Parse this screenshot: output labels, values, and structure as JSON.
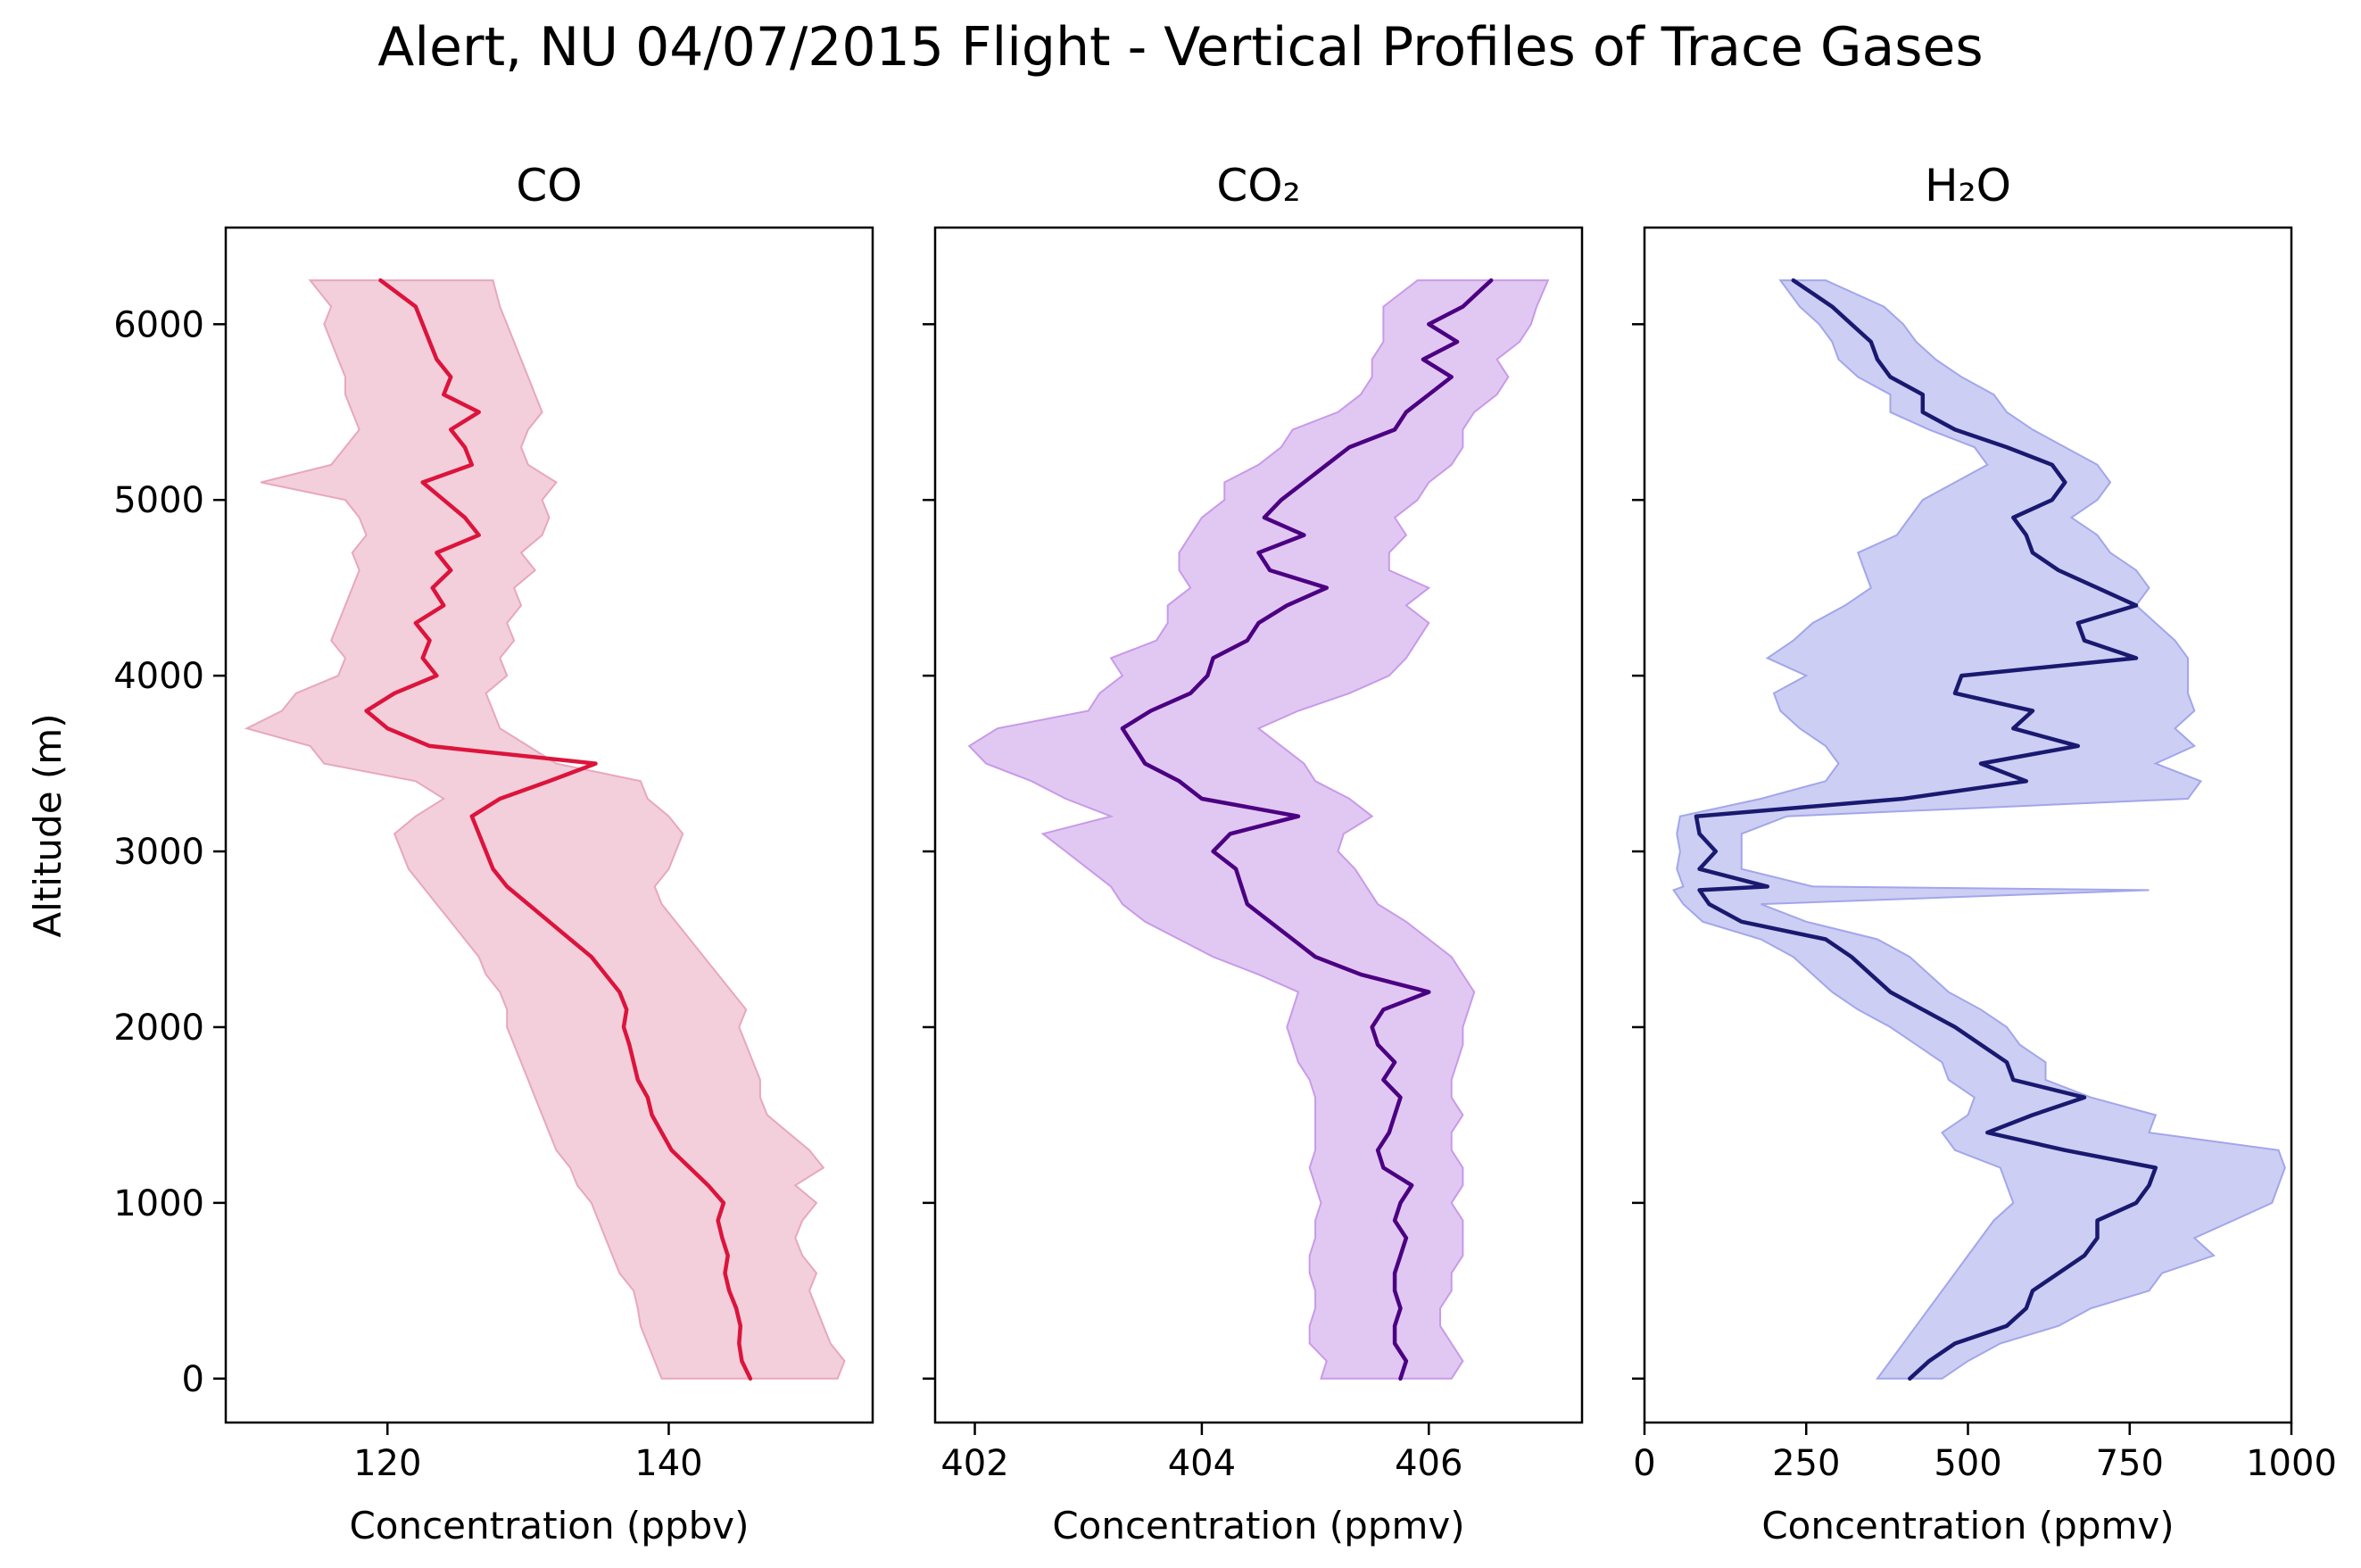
{
  "figure": {
    "title": "Alert, NU 04/07/2015 Flight - Vertical Profiles of Trace Gases",
    "ylabel": "Altitude (m)",
    "ylim": [
      -250,
      6550
    ],
    "yticks": [
      0,
      1000,
      2000,
      3000,
      4000,
      5000,
      6000
    ]
  },
  "chart_data": [
    {
      "type": "line",
      "title": "CO",
      "xlabel": "Concentration (ppbv)",
      "xlim": [
        108.5,
        154.5
      ],
      "xticks": [
        120,
        140
      ],
      "colors": {
        "line": "#dc143c",
        "band": "#e8a7bd"
      },
      "altitude": [
        0,
        100,
        200,
        300,
        400,
        500,
        600,
        700,
        800,
        900,
        1000,
        1100,
        1200,
        1300,
        1400,
        1500,
        1600,
        1700,
        1800,
        1900,
        2000,
        2100,
        2200,
        2300,
        2400,
        2500,
        2600,
        2700,
        2800,
        2900,
        3000,
        3100,
        3200,
        3300,
        3400,
        3500,
        3600,
        3700,
        3800,
        3900,
        4000,
        4100,
        4200,
        4300,
        4400,
        4500,
        4600,
        4700,
        4800,
        4900,
        5000,
        5100,
        5200,
        5300,
        5400,
        5500,
        5600,
        5700,
        5800,
        5900,
        6000,
        6100,
        6250
      ],
      "mean": [
        145.8,
        145.2,
        145.0,
        145.1,
        144.8,
        144.3,
        144.0,
        144.2,
        143.8,
        143.5,
        143.9,
        142.8,
        141.5,
        140.2,
        139.5,
        138.8,
        138.5,
        137.8,
        137.5,
        137.2,
        136.8,
        137.0,
        136.5,
        135.5,
        134.5,
        133.0,
        131.5,
        130.0,
        128.5,
        127.5,
        127.0,
        126.5,
        126.0,
        128.0,
        131.5,
        134.8,
        123.0,
        120.0,
        118.5,
        120.5,
        123.5,
        122.5,
        123.0,
        122.0,
        124.0,
        123.2,
        124.5,
        123.5,
        126.5,
        125.5,
        124.0,
        122.5,
        126.0,
        125.5,
        124.5,
        126.5,
        124.0,
        124.5,
        123.5,
        123.0,
        122.5,
        122.0,
        119.5
      ],
      "lower": [
        139.5,
        139.0,
        138.5,
        138.0,
        137.8,
        137.5,
        136.5,
        136.0,
        135.5,
        135.0,
        134.5,
        133.5,
        133.0,
        132.0,
        131.5,
        131.0,
        130.5,
        130.0,
        129.5,
        129.0,
        128.5,
        128.5,
        128.0,
        127.0,
        126.5,
        125.5,
        124.5,
        123.5,
        122.5,
        121.5,
        121.0,
        120.5,
        122.0,
        124.0,
        122.0,
        115.5,
        114.5,
        110.0,
        112.5,
        113.5,
        116.5,
        117.0,
        116.0,
        116.5,
        117.0,
        117.5,
        118.0,
        117.5,
        118.5,
        118.0,
        117.0,
        111.0,
        116.0,
        117.0,
        118.0,
        117.5,
        117.0,
        117.0,
        116.5,
        116.0,
        115.5,
        116.0,
        114.5
      ],
      "upper": [
        152.0,
        152.5,
        151.5,
        151.0,
        150.5,
        150.0,
        150.5,
        149.5,
        149.0,
        149.5,
        150.5,
        149.0,
        151.0,
        150.0,
        148.5,
        147.0,
        146.5,
        146.5,
        146.0,
        145.5,
        145.0,
        145.5,
        144.5,
        143.5,
        142.5,
        141.5,
        140.5,
        139.5,
        139.0,
        140.0,
        140.5,
        141.0,
        140.0,
        138.5,
        138.0,
        132.0,
        130.0,
        128.0,
        127.5,
        127.0,
        128.5,
        128.0,
        129.0,
        128.5,
        129.5,
        129.0,
        130.5,
        129.5,
        131.0,
        131.5,
        131.0,
        132.0,
        130.0,
        129.5,
        130.0,
        131.0,
        130.5,
        130.0,
        129.5,
        129.0,
        128.5,
        128.0,
        127.5
      ]
    },
    {
      "type": "line",
      "title": "CO₂",
      "xlabel": "Concentration (ppmv)",
      "xlim": [
        401.65,
        407.35
      ],
      "xticks": [
        402,
        404,
        406
      ],
      "colors": {
        "line": "#4b0082",
        "band": "#c89ae8"
      },
      "altitude": [
        0,
        100,
        200,
        300,
        400,
        500,
        600,
        700,
        800,
        900,
        1000,
        1100,
        1200,
        1300,
        1400,
        1500,
        1600,
        1700,
        1800,
        1900,
        2000,
        2100,
        2200,
        2300,
        2400,
        2500,
        2600,
        2700,
        2800,
        2900,
        3000,
        3100,
        3200,
        3300,
        3400,
        3500,
        3600,
        3700,
        3800,
        3900,
        4000,
        4100,
        4200,
        4300,
        4400,
        4500,
        4600,
        4700,
        4800,
        4900,
        5000,
        5100,
        5200,
        5300,
        5400,
        5500,
        5600,
        5700,
        5800,
        5900,
        6000,
        6100,
        6250
      ],
      "mean": [
        405.75,
        405.8,
        405.7,
        405.7,
        405.75,
        405.7,
        405.7,
        405.75,
        405.8,
        405.7,
        405.75,
        405.85,
        405.6,
        405.55,
        405.65,
        405.7,
        405.75,
        405.6,
        405.7,
        405.55,
        405.5,
        405.6,
        406.0,
        405.4,
        405.0,
        404.8,
        404.6,
        404.4,
        404.35,
        404.3,
        404.1,
        404.25,
        404.85,
        404.0,
        403.8,
        403.5,
        403.4,
        403.3,
        403.55,
        403.9,
        404.05,
        404.1,
        404.4,
        404.5,
        404.75,
        405.1,
        404.6,
        404.5,
        404.9,
        404.55,
        404.7,
        404.9,
        405.1,
        405.3,
        405.7,
        405.8,
        406.0,
        406.2,
        405.95,
        406.25,
        406.0,
        406.3,
        406.55
      ],
      "lower": [
        405.05,
        405.1,
        404.95,
        404.95,
        405.0,
        405.0,
        404.95,
        404.95,
        405.0,
        405.0,
        405.05,
        405.0,
        404.95,
        405.0,
        405.0,
        405.0,
        405.0,
        404.95,
        404.85,
        404.8,
        404.75,
        404.8,
        404.85,
        404.5,
        404.1,
        403.8,
        403.5,
        403.3,
        403.2,
        403.0,
        402.8,
        402.6,
        403.2,
        402.8,
        402.5,
        402.1,
        401.95,
        402.2,
        403.0,
        403.1,
        403.3,
        403.2,
        403.6,
        403.7,
        403.7,
        403.9,
        403.8,
        403.8,
        403.9,
        404.0,
        404.2,
        404.2,
        404.5,
        404.7,
        404.8,
        405.2,
        405.4,
        405.5,
        405.5,
        405.6,
        405.6,
        405.6,
        405.9
      ],
      "upper": [
        406.2,
        406.3,
        406.2,
        406.1,
        406.1,
        406.2,
        406.2,
        406.3,
        406.3,
        406.3,
        406.2,
        406.3,
        406.3,
        406.2,
        406.2,
        406.3,
        406.2,
        406.2,
        406.25,
        406.3,
        406.3,
        406.35,
        406.4,
        406.3,
        406.2,
        406.0,
        405.8,
        405.55,
        405.45,
        405.35,
        405.2,
        405.25,
        405.5,
        405.3,
        405.0,
        404.9,
        404.7,
        404.5,
        404.85,
        405.3,
        405.65,
        405.8,
        405.9,
        406.0,
        405.8,
        406.0,
        405.65,
        405.65,
        405.8,
        405.7,
        405.9,
        406.0,
        406.2,
        406.3,
        406.3,
        406.4,
        406.6,
        406.7,
        406.6,
        406.8,
        406.9,
        406.95,
        407.05
      ]
    },
    {
      "type": "line",
      "title": "H₂O",
      "xlabel": "Concentration (ppmv)",
      "xlim": [
        0,
        1000
      ],
      "xticks": [
        0,
        250,
        500,
        750,
        1000
      ],
      "colors": {
        "line": "#191970",
        "band": "#a2a6ea"
      },
      "altitude": [
        0,
        100,
        200,
        300,
        400,
        500,
        600,
        700,
        800,
        900,
        1000,
        1100,
        1200,
        1300,
        1400,
        1500,
        1600,
        1700,
        1800,
        1900,
        2000,
        2100,
        2200,
        2300,
        2400,
        2500,
        2600,
        2700,
        2780,
        2800,
        2900,
        3000,
        3100,
        3200,
        3300,
        3400,
        3500,
        3600,
        3700,
        3800,
        3900,
        4000,
        4100,
        4200,
        4300,
        4400,
        4500,
        4600,
        4700,
        4800,
        4900,
        5000,
        5100,
        5200,
        5300,
        5400,
        5500,
        5600,
        5700,
        5800,
        5900,
        6000,
        6100,
        6250
      ],
      "mean": [
        410,
        440,
        480,
        560,
        590,
        600,
        640,
        680,
        700,
        700,
        760,
        780,
        790,
        650,
        530,
        600,
        680,
        570,
        560,
        520,
        480,
        430,
        380,
        350,
        320,
        280,
        150,
        100,
        85,
        190,
        85,
        110,
        85,
        80,
        400,
        590,
        520,
        670,
        570,
        600,
        480,
        490,
        760,
        680,
        670,
        760,
        700,
        640,
        600,
        590,
        570,
        630,
        650,
        630,
        560,
        480,
        430,
        430,
        380,
        360,
        350,
        320,
        290,
        230
      ],
      "lower": [
        360,
        380,
        400,
        420,
        440,
        460,
        480,
        500,
        520,
        540,
        570,
        560,
        550,
        480,
        460,
        500,
        510,
        470,
        460,
        420,
        380,
        330,
        290,
        260,
        230,
        180,
        90,
        60,
        45,
        60,
        50,
        55,
        50,
        55,
        180,
        280,
        300,
        280,
        240,
        210,
        200,
        250,
        190,
        230,
        260,
        310,
        350,
        340,
        330,
        390,
        410,
        430,
        480,
        530,
        510,
        440,
        380,
        380,
        330,
        300,
        290,
        270,
        240,
        210
      ],
      "upper": [
        460,
        500,
        550,
        640,
        690,
        780,
        800,
        880,
        850,
        910,
        970,
        980,
        990,
        980,
        780,
        790,
        690,
        620,
        620,
        580,
        560,
        520,
        470,
        440,
        410,
        360,
        250,
        180,
        780,
        260,
        150,
        150,
        150,
        220,
        840,
        860,
        790,
        850,
        820,
        850,
        840,
        840,
        840,
        820,
        790,
        760,
        780,
        760,
        720,
        700,
        660,
        700,
        720,
        700,
        650,
        600,
        560,
        540,
        490,
        450,
        420,
        400,
        370,
        280
      ]
    }
  ]
}
